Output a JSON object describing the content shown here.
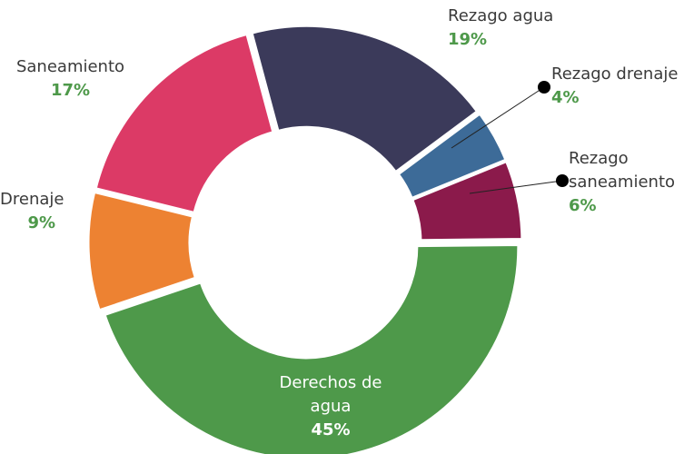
{
  "chart_data": {
    "type": "donut",
    "categories": [
      "Rezago agua",
      "Rezago drenaje",
      "Rezago saneamiento",
      "Derechos de agua",
      "Drenaje",
      "Saneamiento"
    ],
    "values": [
      19,
      4,
      6,
      45,
      9,
      17
    ],
    "value_labels": [
      "19%",
      "4%",
      "6%",
      "45%",
      "9%",
      "17%"
    ],
    "colors": [
      "#3b3a5a",
      "#3d6b98",
      "#8b1a4b",
      "#4e994a",
      "#ed8232",
      "#dc3a66"
    ]
  }
}
